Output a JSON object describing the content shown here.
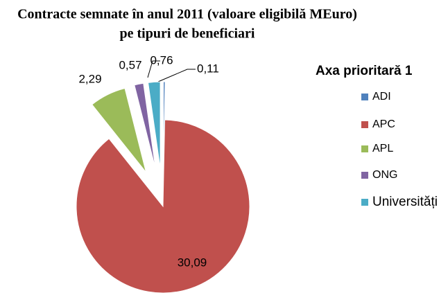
{
  "chart_data": {
    "type": "pie",
    "title": [
      "Contracte semnate în anul 2011 (valoare eligibilă MEuro)",
      "pe tipuri de beneficiari"
    ],
    "legend_title": "Axa prioritară 1",
    "categories": [
      "ADI",
      "APC",
      "APL",
      "ONG",
      "Universități"
    ],
    "values": [
      0.11,
      30.09,
      2.29,
      0.57,
      0.76
    ],
    "value_labels": [
      "0,11",
      "30,09",
      "2,29",
      "0,57",
      "0,76"
    ],
    "colors": [
      "#4f81bd",
      "#c0504d",
      "#9bbb59",
      "#8064a2",
      "#4bacc6"
    ],
    "legend": "right"
  }
}
